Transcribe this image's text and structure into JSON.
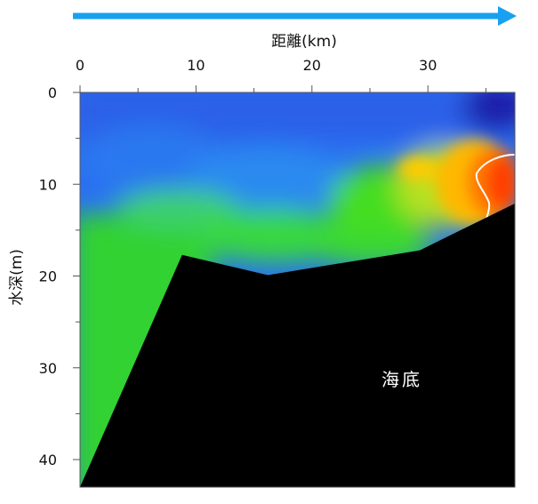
{
  "chart_data": {
    "type": "heatmap",
    "title": "",
    "xlabel": "距離(km)",
    "ylabel": "水深(m)",
    "xlim": [
      0,
      37.5
    ],
    "ylim": [
      0,
      43
    ],
    "x_ticks": [
      0,
      10,
      20,
      30
    ],
    "y_ticks": [
      0,
      10,
      20,
      30,
      40
    ],
    "y_inverted": true,
    "x_axis_position": "top",
    "direction_arrow": "left-to-right",
    "grid": false,
    "legend": "none",
    "seabed_profile": [
      {
        "x": 0,
        "y": 43
      },
      {
        "x": 8.8,
        "y": 17.7
      },
      {
        "x": 16.2,
        "y": 19.9
      },
      {
        "x": 29.3,
        "y": 17.2
      },
      {
        "x": 37.5,
        "y": 12.1
      }
    ],
    "seabed_label": "海底",
    "contour_note": "white contour line near x≈34–36 km, depth ≈7–13 m",
    "color_scale": [
      "#1a1aa8",
      "#1f4fe0",
      "#2b8ff0",
      "#22c8a0",
      "#33dd33",
      "#b0e020",
      "#ffd400",
      "#ff8a00",
      "#ff3a00"
    ],
    "colors": {
      "arrow": "#1aa0f0",
      "seabed": "#000000",
      "contour": "#ffffff"
    }
  }
}
